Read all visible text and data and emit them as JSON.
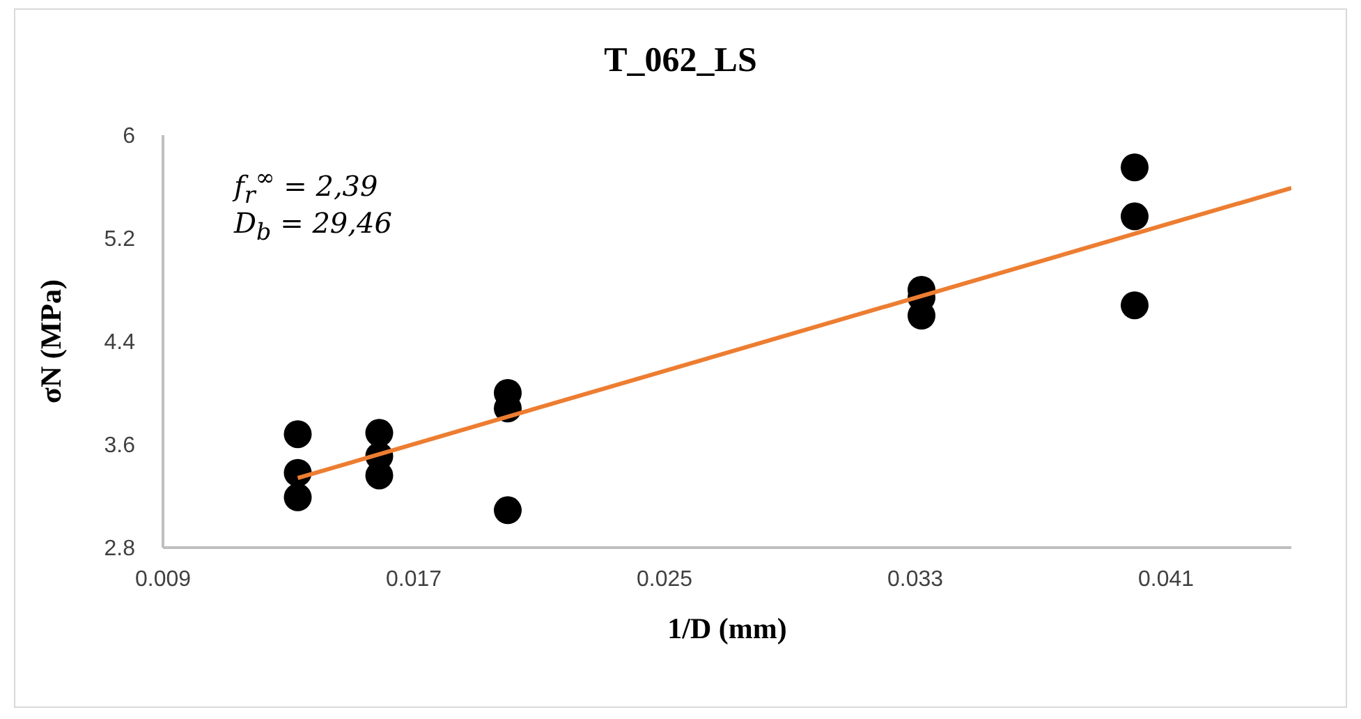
{
  "chart_data": {
    "type": "scatter",
    "title": "T_062_LS",
    "xlabel": "1/D (mm)",
    "ylabel": "σN (MPa)",
    "annotations": [
      "f$_{r}$$^{∞}$ = 2,39",
      "D$_{b}$ = 29,46"
    ],
    "xlim": [
      0.009,
      0.045
    ],
    "xticks": [
      0.009,
      0.017,
      0.025,
      0.033,
      0.041
    ],
    "ylim": [
      2.8,
      6
    ],
    "yticks": [
      2.8,
      3.6,
      4.4,
      5.2,
      6
    ],
    "grid": false,
    "legend": false,
    "series": [
      {
        "type": "scatter",
        "color": "#000000",
        "marker": "circle",
        "x": [
          0.0133,
          0.0133,
          0.0133,
          0.0159,
          0.0159,
          0.0159,
          0.02,
          0.02,
          0.02,
          0.0332,
          0.0332,
          0.0332,
          0.04,
          0.04,
          0.04
        ],
        "values": [
          3.68,
          3.38,
          3.19,
          3.69,
          3.51,
          3.36,
          4.0,
          3.88,
          3.09,
          4.8,
          4.74,
          4.6,
          5.75,
          5.37,
          4.68
        ]
      },
      {
        "type": "line",
        "color": "#ed7d31",
        "marker": "none",
        "x": [
          0.0133,
          0.045
        ],
        "values": [
          3.34,
          5.59
        ]
      }
    ]
  }
}
